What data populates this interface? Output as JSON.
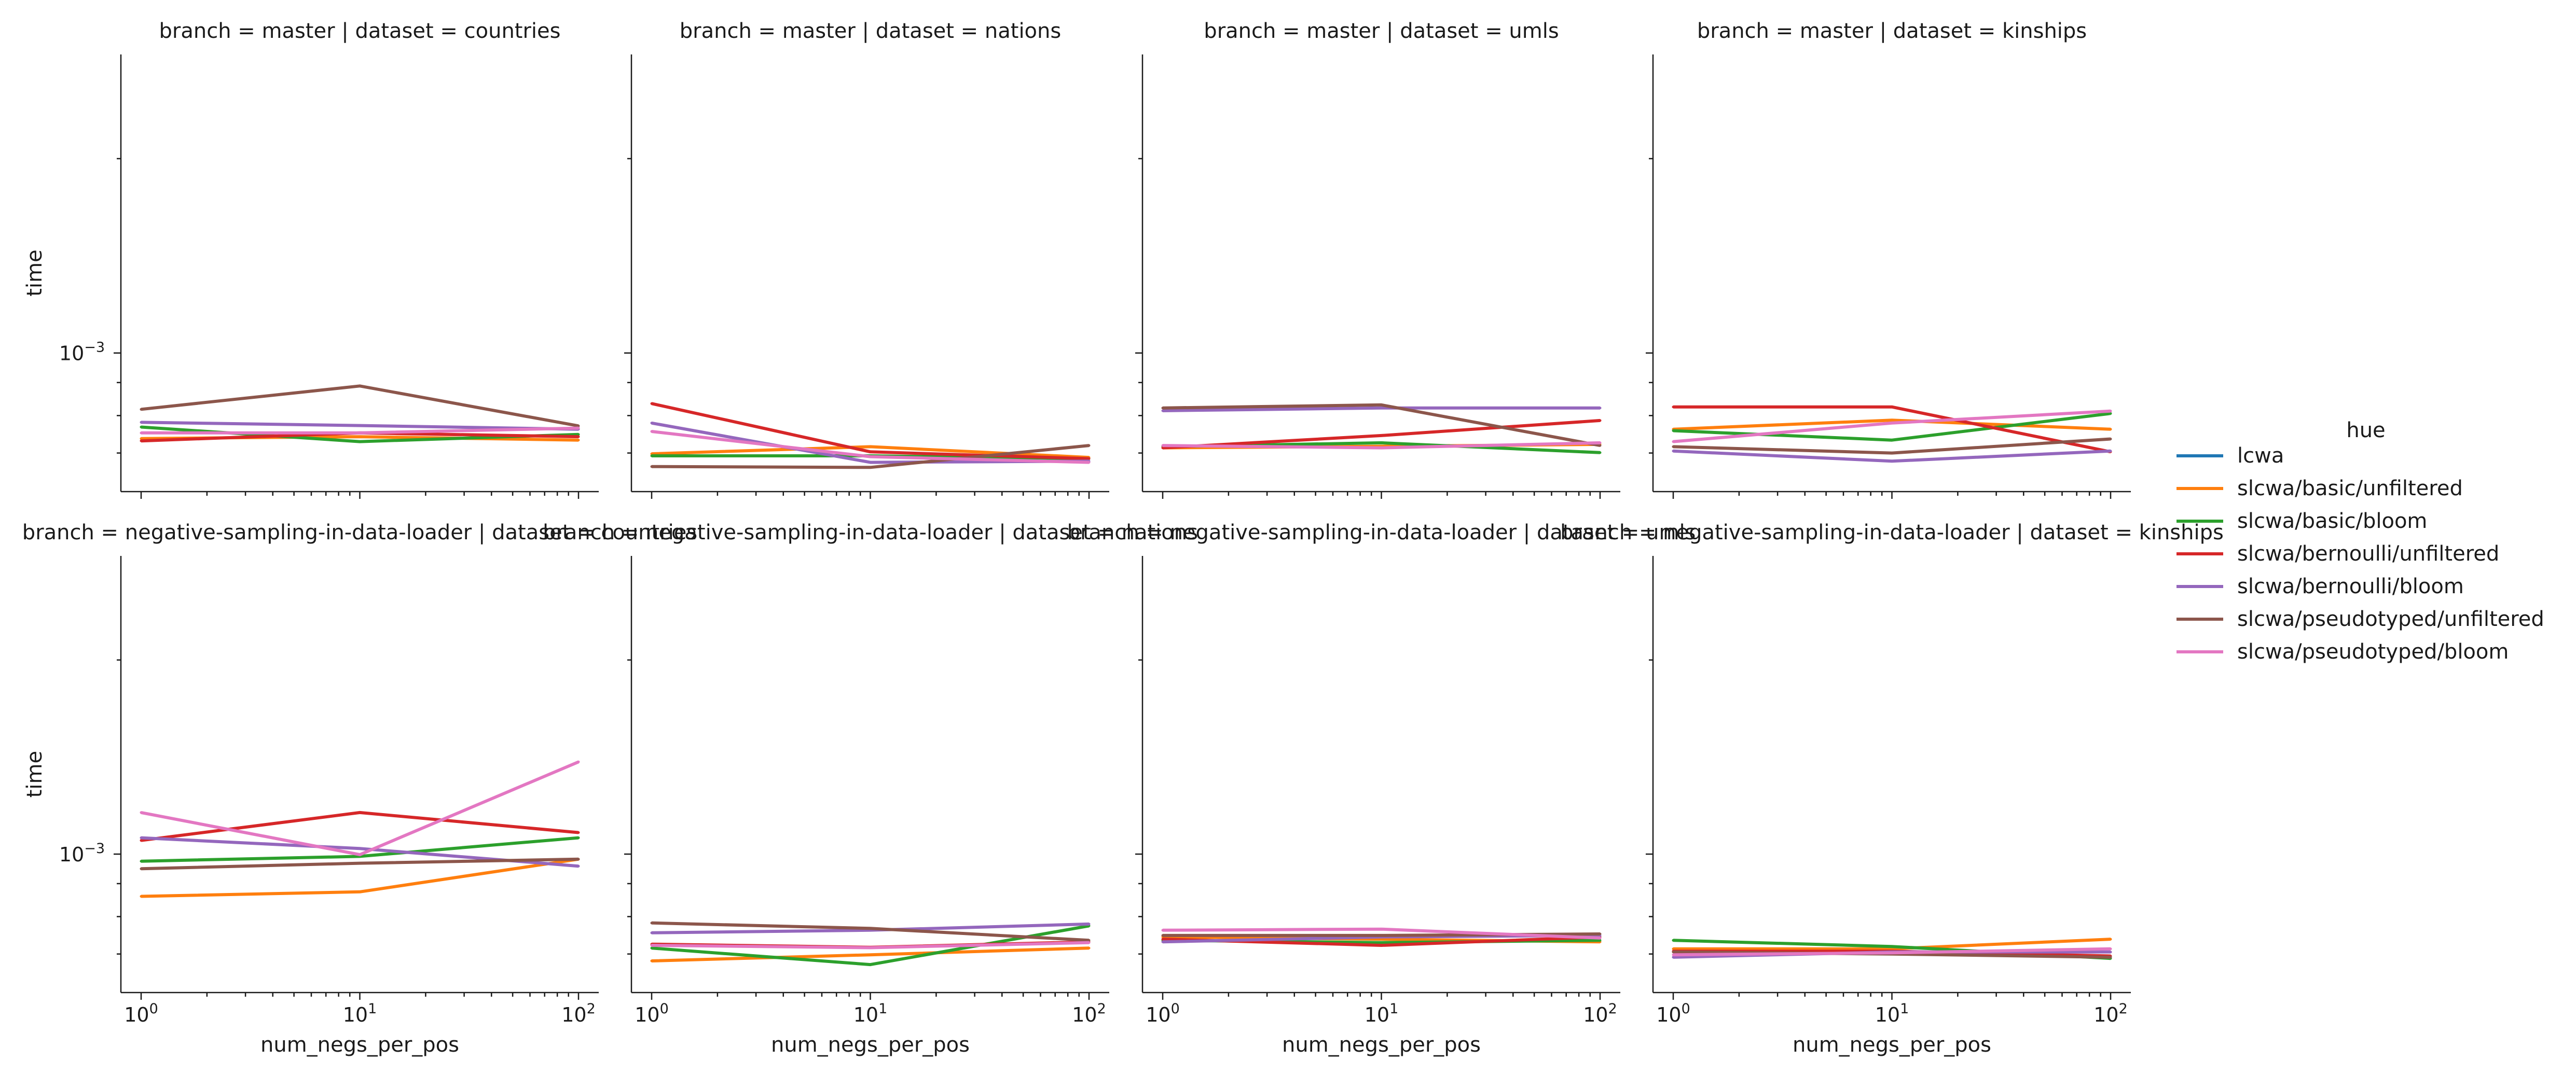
{
  "chart_data": {
    "type": "line",
    "facet_grid": {
      "rows": 2,
      "cols": 4
    },
    "xlabel": "num_negs_per_pos",
    "ylabel": "time",
    "x": [
      1,
      10,
      100
    ],
    "x_scale": "log",
    "y_scale": "log",
    "x_tick_labels": [
      "10",
      "10",
      "10"
    ],
    "x_tick_exponents": [
      "0",
      "1",
      "2"
    ],
    "y_tick_label": "10",
    "y_tick_exponent": "−3",
    "y_tick_value": 0.001,
    "ylim": [
      0.00061,
      0.0029
    ],
    "legend": {
      "title": "hue",
      "position": "right"
    },
    "series_styles": [
      {
        "name": "lcwa",
        "color": "#1f77b4"
      },
      {
        "name": "slcwa/basic/unfiltered",
        "color": "#ff7f0e"
      },
      {
        "name": "slcwa/basic/bloom",
        "color": "#2ca02c"
      },
      {
        "name": "slcwa/bernoulli/unfiltered",
        "color": "#d62728"
      },
      {
        "name": "slcwa/bernoulli/bloom",
        "color": "#9467bd"
      },
      {
        "name": "slcwa/pseudotyped/unfiltered",
        "color": "#8c564b"
      },
      {
        "name": "slcwa/pseudotyped/bloom",
        "color": "#e377c2"
      }
    ],
    "panels": [
      {
        "title": "branch = master | dataset = countries",
        "series": [
          {
            "name": "slcwa/basic/unfiltered",
            "values": [
              0.000737,
              0.000742,
              0.000733
            ]
          },
          {
            "name": "slcwa/basic/bloom",
            "values": [
              0.000768,
              0.000729,
              0.000748
            ]
          },
          {
            "name": "slcwa/bernoulli/unfiltered",
            "values": [
              0.000731,
              0.000752,
              0.000742
            ]
          },
          {
            "name": "slcwa/bernoulli/bloom",
            "values": [
              0.000781,
              0.000772,
              0.000762
            ]
          },
          {
            "name": "slcwa/pseudotyped/unfiltered",
            "values": [
              0.000818,
              0.000889,
              0.000771
            ]
          },
          {
            "name": "slcwa/pseudotyped/bloom",
            "values": [
              0.000752,
              0.000752,
              0.000765
            ]
          }
        ]
      },
      {
        "title": "branch = master | dataset = nations",
        "series": [
          {
            "name": "slcwa/basic/unfiltered",
            "values": [
              0.000698,
              0.000716,
              0.000689
            ]
          },
          {
            "name": "slcwa/basic/bloom",
            "values": [
              0.000693,
              0.000693,
              0.000686
            ]
          },
          {
            "name": "slcwa/bernoulli/unfiltered",
            "values": [
              0.000835,
              0.000703,
              0.000686
            ]
          },
          {
            "name": "slcwa/bernoulli/bloom",
            "values": [
              0.000779,
              0.000677,
              0.00068
            ]
          },
          {
            "name": "slcwa/pseudotyped/unfiltered",
            "values": [
              0.000667,
              0.000665,
              0.000719
            ]
          },
          {
            "name": "slcwa/pseudotyped/bloom",
            "values": [
              0.000756,
              0.000691,
              0.000677
            ]
          }
        ]
      },
      {
        "title": "branch = master | dataset = umls",
        "series": [
          {
            "name": "slcwa/basic/unfiltered",
            "values": [
              0.000713,
              0.000717,
              0.000722
            ]
          },
          {
            "name": "slcwa/basic/bloom",
            "values": [
              0.000716,
              0.000726,
              0.000701
            ]
          },
          {
            "name": "slcwa/bernoulli/unfiltered",
            "values": [
              0.000713,
              0.000745,
              0.000786
            ]
          },
          {
            "name": "slcwa/bernoulli/bloom",
            "values": [
              0.000814,
              0.000822,
              0.000822
            ]
          },
          {
            "name": "slcwa/pseudotyped/unfiltered",
            "values": [
              0.000822,
              0.000831,
              0.000719
            ]
          },
          {
            "name": "slcwa/pseudotyped/bloom",
            "values": [
              0.000719,
              0.000713,
              0.000726
            ]
          }
        ]
      },
      {
        "title": "branch = master | dataset = kinships",
        "series": [
          {
            "name": "slcwa/basic/unfiltered",
            "values": [
              0.000762,
              0.000787,
              0.000762
            ]
          },
          {
            "name": "slcwa/basic/bloom",
            "values": [
              0.000758,
              0.000733,
              0.000806
            ]
          },
          {
            "name": "slcwa/bernoulli/unfiltered",
            "values": [
              0.000825,
              0.000825,
              0.000703
            ]
          },
          {
            "name": "slcwa/bernoulli/bloom",
            "values": [
              0.000705,
              0.00068,
              0.000705
            ]
          },
          {
            "name": "slcwa/pseudotyped/unfiltered",
            "values": [
              0.000716,
              0.0007,
              0.000736
            ]
          },
          {
            "name": "slcwa/pseudotyped/bloom",
            "values": [
              0.000729,
              0.000779,
              0.000813
            ]
          }
        ]
      },
      {
        "title": "branch = negative-sampling-in-data-loader | dataset = countries",
        "series": [
          {
            "name": "slcwa/basic/unfiltered",
            "values": [
              0.00086,
              0.000874,
              0.000982
            ]
          },
          {
            "name": "slcwa/basic/bloom",
            "values": [
              0.000975,
              0.000992,
              0.00106
            ]
          },
          {
            "name": "slcwa/bernoulli/unfiltered",
            "values": [
              0.00105,
              0.00116,
              0.00108
            ]
          },
          {
            "name": "slcwa/bernoulli/bloom",
            "values": [
              0.00106,
              0.00102,
              0.000958
            ]
          },
          {
            "name": "slcwa/pseudotyped/unfiltered",
            "values": [
              0.000949,
              0.000968,
              0.000982
            ]
          },
          {
            "name": "slcwa/pseudotyped/bloom",
            "values": [
              0.00116,
              0.000998,
              0.00139
            ]
          }
        ]
      },
      {
        "title": "branch = negative-sampling-in-data-loader | dataset = nations",
        "series": [
          {
            "name": "slcwa/basic/unfiltered",
            "values": [
              0.000683,
              0.000698,
              0.000715
            ]
          },
          {
            "name": "slcwa/basic/bloom",
            "values": [
              0.000715,
              0.000674,
              0.000774
            ]
          },
          {
            "name": "slcwa/bernoulli/unfiltered",
            "values": [
              0.000725,
              0.000717,
              0.000731
            ]
          },
          {
            "name": "slcwa/bernoulli/bloom",
            "values": [
              0.000755,
              0.000762,
              0.000779
            ]
          },
          {
            "name": "slcwa/pseudotyped/unfiltered",
            "values": [
              0.000782,
              0.000767,
              0.000735
            ]
          },
          {
            "name": "slcwa/pseudotyped/bloom",
            "values": [
              0.000722,
              0.000716,
              0.000729
            ]
          }
        ]
      },
      {
        "title": "branch = negative-sampling-in-data-loader | dataset = umls",
        "series": [
          {
            "name": "slcwa/basic/unfiltered",
            "values": [
              0.000744,
              0.000738,
              0.000731
            ]
          },
          {
            "name": "slcwa/basic/bloom",
            "values": [
              0.000735,
              0.000729,
              0.000735
            ]
          },
          {
            "name": "slcwa/bernoulli/unfiltered",
            "values": [
              0.000738,
              0.000722,
              0.000744
            ]
          },
          {
            "name": "slcwa/bernoulli/bloom",
            "values": [
              0.000731,
              0.000744,
              0.000748
            ]
          },
          {
            "name": "slcwa/pseudotyped/unfiltered",
            "values": [
              0.000748,
              0.000748,
              0.000752
            ]
          },
          {
            "name": "slcwa/pseudotyped/bloom",
            "values": [
              0.000762,
              0.000765,
              0.000741
            ]
          }
        ]
      },
      {
        "title": "branch = negative-sampling-in-data-loader | dataset = kinships",
        "series": [
          {
            "name": "slcwa/basic/unfiltered",
            "values": [
              0.000713,
              0.000713,
              0.000738
            ]
          },
          {
            "name": "slcwa/basic/bloom",
            "values": [
              0.000735,
              0.000719,
              0.000689
            ]
          },
          {
            "name": "slcwa/bernoulli/unfiltered",
            "values": [
              0.000707,
              0.000707,
              0.000695
            ]
          },
          {
            "name": "slcwa/bernoulli/bloom",
            "values": [
              0.000692,
              0.000705,
              0.000705
            ]
          },
          {
            "name": "slcwa/pseudotyped/unfiltered",
            "values": [
              0.000705,
              0.0007,
              0.000692
            ]
          },
          {
            "name": "slcwa/pseudotyped/bloom",
            "values": [
              0.000698,
              0.000703,
              0.000713
            ]
          }
        ]
      }
    ]
  }
}
